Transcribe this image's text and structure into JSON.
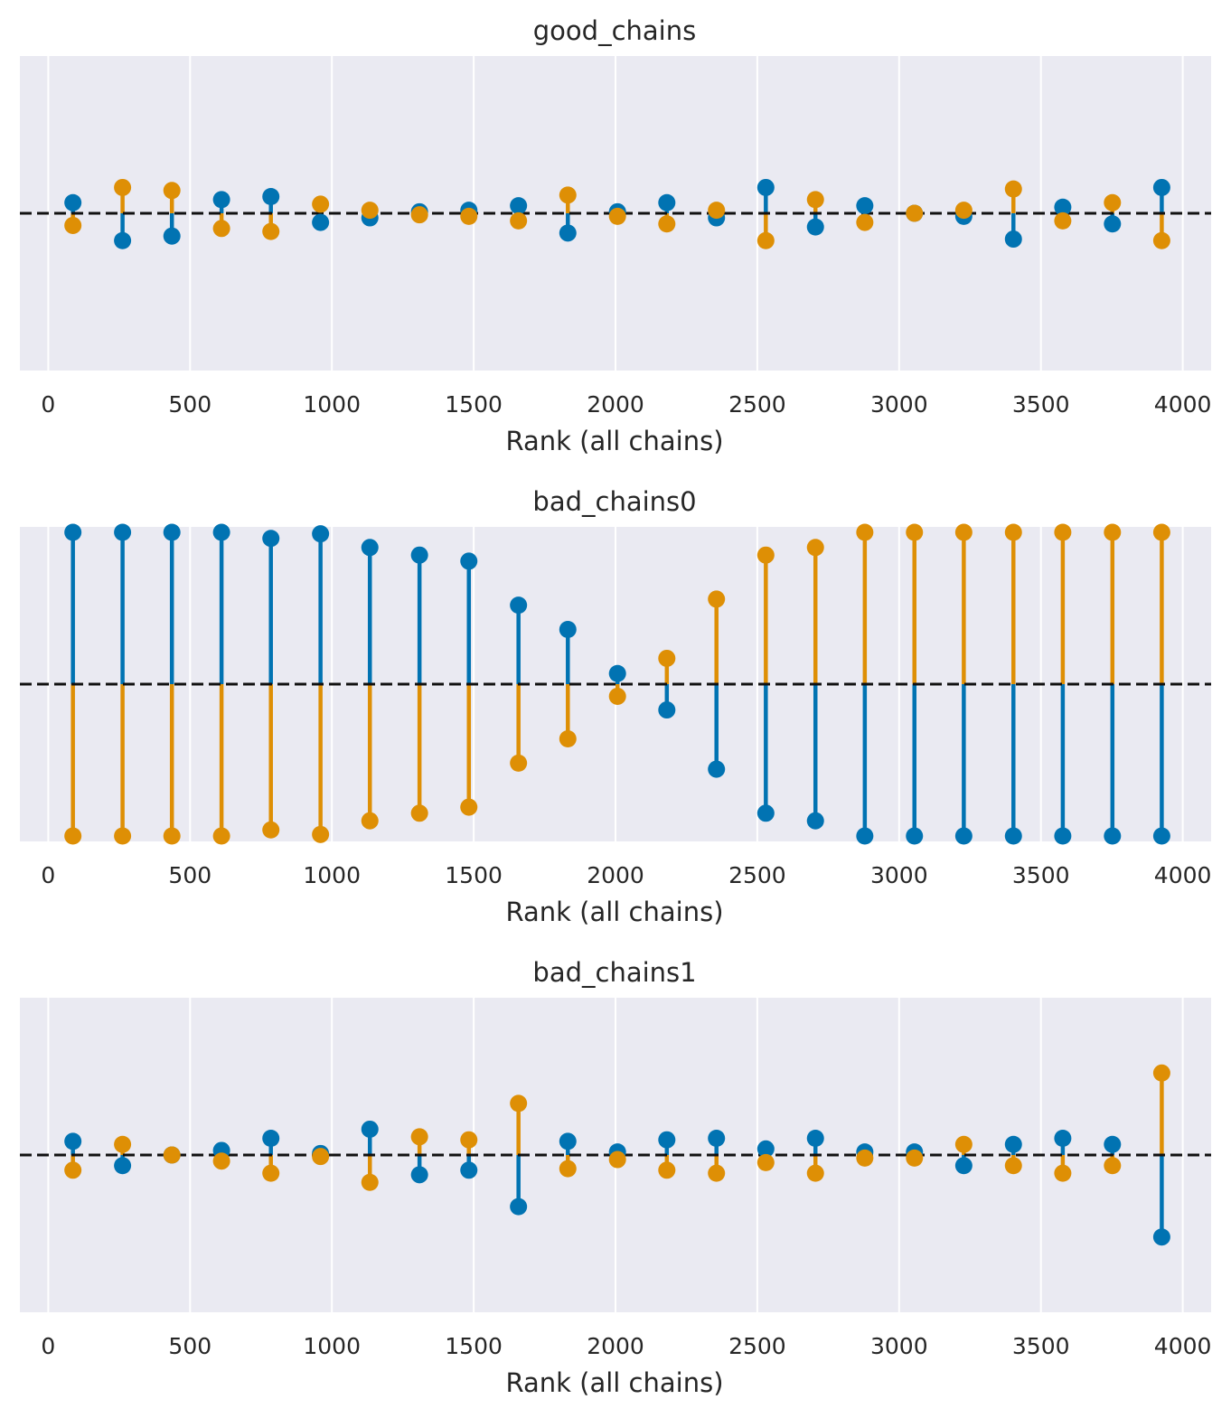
{
  "colors": {
    "axes_bg": "#eaeaf2",
    "grid": "#ffffff",
    "series_a": "#0173b2",
    "series_b": "#de8f05",
    "reference_line": "#111111"
  },
  "chart_data": [
    {
      "type": "stem",
      "title": "good_chains",
      "xlabel": "Rank (all chains)",
      "ylabel": "",
      "xlim": [
        -100,
        4100
      ],
      "ylim": [
        -1,
        1
      ],
      "xticks": [
        0,
        500,
        1000,
        1500,
        2000,
        2500,
        3000,
        3500,
        4000
      ],
      "xtick_labels": [
        "0",
        "500",
        "1000",
        "1500",
        "2000",
        "2500",
        "3000",
        "3500",
        "4000"
      ],
      "grid": "vertical",
      "reference_y": 0,
      "x": [
        87,
        262,
        436,
        611,
        785,
        960,
        1134,
        1309,
        1483,
        1658,
        1832,
        2007,
        2181,
        2356,
        2530,
        2705,
        2879,
        3054,
        3228,
        3403,
        3577,
        3752,
        3926
      ],
      "series": [
        {
          "color": "#0173b2",
          "values": [
            0.07,
            -0.18,
            -0.15,
            0.09,
            0.11,
            -0.06,
            -0.03,
            0.01,
            0.02,
            0.05,
            -0.13,
            0.01,
            0.07,
            -0.03,
            0.17,
            -0.09,
            0.05,
            0.0,
            -0.02,
            -0.17,
            0.04,
            -0.07,
            0.17
          ]
        },
        {
          "color": "#de8f05",
          "values": [
            -0.08,
            0.17,
            0.15,
            -0.1,
            -0.12,
            0.06,
            0.02,
            -0.01,
            -0.02,
            -0.05,
            0.12,
            -0.02,
            -0.07,
            0.02,
            -0.18,
            0.09,
            -0.06,
            0.0,
            0.02,
            0.16,
            -0.05,
            0.07,
            -0.18
          ]
        }
      ]
    },
    {
      "type": "stem",
      "title": "bad_chains0",
      "xlabel": "Rank (all chains)",
      "ylabel": "",
      "xlim": [
        -100,
        4100
      ],
      "ylim": [
        -1,
        1
      ],
      "xticks": [
        0,
        500,
        1000,
        1500,
        2000,
        2500,
        3000,
        3500,
        4000
      ],
      "xtick_labels": [
        "0",
        "500",
        "1000",
        "1500",
        "2000",
        "2500",
        "3000",
        "3500",
        "4000"
      ],
      "grid": "vertical",
      "reference_y": 0,
      "x": [
        87,
        262,
        436,
        611,
        785,
        960,
        1134,
        1309,
        1483,
        1658,
        1832,
        2007,
        2181,
        2356,
        2530,
        2705,
        2879,
        3054,
        3228,
        3403,
        3577,
        3752,
        3926
      ],
      "series": [
        {
          "color": "#0173b2",
          "values": [
            1.0,
            1.0,
            1.0,
            1.0,
            0.96,
            0.99,
            0.9,
            0.85,
            0.81,
            0.52,
            0.36,
            0.07,
            -0.17,
            -0.56,
            -0.85,
            -0.9,
            -1.0,
            -1.0,
            -1.0,
            -1.0,
            -1.0,
            -1.0,
            -1.0
          ]
        },
        {
          "color": "#de8f05",
          "values": [
            -1.0,
            -1.0,
            -1.0,
            -1.0,
            -0.96,
            -0.99,
            -0.9,
            -0.85,
            -0.81,
            -0.52,
            -0.36,
            -0.08,
            0.17,
            0.56,
            0.85,
            0.9,
            1.0,
            1.0,
            1.0,
            1.0,
            1.0,
            1.0,
            1.0
          ]
        }
      ]
    },
    {
      "type": "stem",
      "title": "bad_chains1",
      "xlabel": "Rank (all chains)",
      "ylabel": "",
      "xlim": [
        -100,
        4100
      ],
      "ylim": [
        -1,
        1
      ],
      "xticks": [
        0,
        500,
        1000,
        1500,
        2000,
        2500,
        3000,
        3500,
        4000
      ],
      "xtick_labels": [
        "0",
        "500",
        "1000",
        "1500",
        "2000",
        "2500",
        "3000",
        "3500",
        "4000"
      ],
      "grid": "vertical",
      "reference_y": 0,
      "x": [
        87,
        262,
        436,
        611,
        785,
        960,
        1134,
        1309,
        1483,
        1658,
        1832,
        2007,
        2181,
        2356,
        2530,
        2705,
        2879,
        3054,
        3228,
        3403,
        3577,
        3752,
        3926
      ],
      "series": [
        {
          "color": "#0173b2",
          "values": [
            0.09,
            -0.07,
            0.0,
            0.03,
            0.11,
            0.01,
            0.17,
            -0.13,
            -0.1,
            -0.34,
            0.09,
            0.02,
            0.1,
            0.11,
            0.04,
            0.11,
            0.02,
            0.02,
            -0.07,
            0.07,
            0.11,
            0.07,
            -0.54
          ]
        },
        {
          "color": "#de8f05",
          "values": [
            -0.1,
            0.07,
            0.0,
            -0.04,
            -0.12,
            -0.01,
            -0.18,
            0.12,
            0.1,
            0.34,
            -0.09,
            -0.03,
            -0.1,
            -0.12,
            -0.05,
            -0.12,
            -0.02,
            -0.02,
            0.07,
            -0.07,
            -0.12,
            -0.07,
            0.54
          ]
        }
      ]
    }
  ]
}
